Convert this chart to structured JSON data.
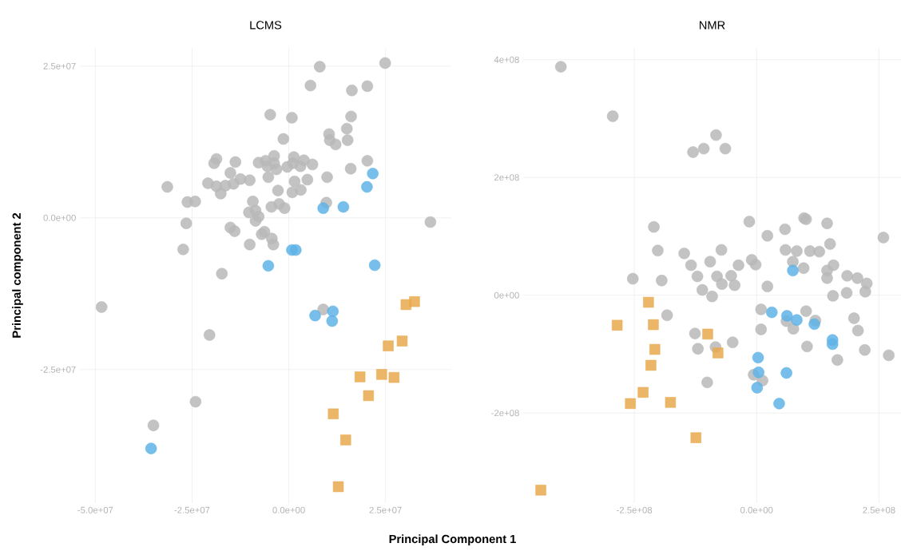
{
  "chart_data": [
    {
      "type": "scatter",
      "title": "LCMS",
      "xlabel": "Principal Component 1",
      "ylabel": "Principal component 2",
      "grid": true,
      "xlim": [
        -54000000.0,
        42000000.0
      ],
      "ylim": [
        -47000000.0,
        28000000.0
      ],
      "xticks": [
        {
          "value": -50000000.0,
          "label": "-5.0e+07"
        },
        {
          "value": -25000000.0,
          "label": "-2.5e+07"
        },
        {
          "value": 0,
          "label": "0.0e+00"
        },
        {
          "value": 25000000.0,
          "label": "2.5e+07"
        }
      ],
      "yticks": [
        {
          "value": -25000000.0,
          "label": "-2.5e+07"
        },
        {
          "value": 0,
          "label": "0.0e+00"
        },
        {
          "value": 25000000.0,
          "label": "2.5e+07"
        }
      ],
      "series": [
        {
          "color": "#b8b8b8",
          "marker": "circle",
          "x": [
            8000000.0,
            24900000.0,
            5600000.0,
            20300000.0,
            16300000.0,
            -4800000.0,
            800000.0,
            16100000.0,
            15000000.0,
            -1400000.0,
            10400000.0,
            10600000.0,
            12100000.0,
            15200000.0,
            -18700000.0,
            -19300000.0,
            -13800000.0,
            -7800000.0,
            -6000000.0,
            -3800000.0,
            -5500000.0,
            -3200000.0,
            -3800000.0,
            1300000.0,
            1100000.0,
            -400000.0,
            3000000.0,
            3900000.0,
            6100000.0,
            20300000.0,
            16000000.0,
            -15100000.0,
            -12500000.0,
            -14300000.0,
            -10100000.0,
            -5300000.0,
            -20900000.0,
            -18700000.0,
            -16400000.0,
            -17600000.0,
            -31400000.0,
            -26200000.0,
            -24200000.0,
            -2800000.0,
            900000.0,
            3100000.0,
            1500000.0,
            4800000.0,
            9900000.0,
            9700000.0,
            -9300000.0,
            -2500000.0,
            -4500000.0,
            -1100000.0,
            -10300000.0,
            -8600000.0,
            -7800000.0,
            -8600000.0,
            -26500000.0,
            36600000.0,
            -15100000.0,
            -14000000.0,
            -6300000.0,
            -7000000.0,
            -4400000.0,
            -4000000.0,
            -10100000.0,
            -27300000.0,
            -17300000.0,
            -48400000.0,
            8900000.0,
            -20500000.0,
            -24100000.0,
            -35000000.0
          ],
          "values": [
            24900000.0,
            25500000.0,
            21800000.0,
            21700000.0,
            21000000.0,
            17000000.0,
            16500000.0,
            16700000.0,
            14700000.0,
            13000000.0,
            13800000.0,
            12800000.0,
            12100000.0,
            12800000.0,
            9700000.0,
            9000000.0,
            9200000.0,
            9100000.0,
            9400000.0,
            10200000.0,
            8500000.0,
            8000000.0,
            9000000.0,
            10000000.0,
            9000000.0,
            8400000.0,
            8500000.0,
            9500000.0,
            8800000.0,
            9400000.0,
            8100000.0,
            7400000.0,
            6400000.0,
            5600000.0,
            6200000.0,
            6700000.0,
            5700000.0,
            5200000.0,
            5300000.0,
            4000000.0,
            5100000.0,
            2600000.0,
            2700000.0,
            4500000.0,
            4200000.0,
            4600000.0,
            6000000.0,
            6300000.0,
            6700000.0,
            2500000.0,
            2700000.0,
            2300000.0,
            1800000.0,
            1600000.0,
            900000.0,
            1200000.0,
            200000.0,
            -500000.0,
            -900000.0,
            -700000.0,
            -1600000.0,
            -2200000.0,
            -2300000.0,
            -2700000.0,
            -3400000.0,
            -4400000.0,
            -4400000.0,
            -5200000.0,
            -9200000.0,
            -14700000.0,
            -15100000.0,
            -19300000.0,
            -30300000.0,
            -34200000.0
          ]
        },
        {
          "color": "#5fb3e6",
          "marker": "circle",
          "x": [
            21700000.0,
            20200000.0,
            8900000.0,
            14100000.0,
            800000.0,
            1800000.0,
            -5300000.0,
            22200000.0,
            6800000.0,
            11400000.0,
            11200000.0,
            -35600000.0
          ],
          "values": [
            7300000.0,
            5100000.0,
            1600000.0,
            1800000.0,
            -5300000.0,
            -5300000.0,
            -7900000.0,
            -7800000.0,
            -16100000.0,
            -15400000.0,
            -17000000.0,
            -38000000.0
          ]
        },
        {
          "color": "#e9a94e",
          "marker": "square",
          "x": [
            32500000.0,
            30300000.0,
            29300000.0,
            25700000.0,
            18400000.0,
            24000000.0,
            27200000.0,
            20600000.0,
            11500000.0,
            14700000.0,
            12800000.0
          ],
          "values": [
            -13800000.0,
            -14300000.0,
            -20300000.0,
            -21100000.0,
            -26200000.0,
            -25800000.0,
            -26300000.0,
            -29300000.0,
            -32300000.0,
            -36600000.0,
            -44300000.0
          ]
        }
      ]
    },
    {
      "type": "scatter",
      "title": "NMR",
      "grid": true,
      "xlim": [
        -477000000.0,
        295000000.0
      ],
      "ylim": [
        -353000000.0,
        420000000.0
      ],
      "xticks": [
        {
          "value": -250000000.0,
          "label": "-2.5e+08"
        },
        {
          "value": 0,
          "label": "0.0e+00"
        },
        {
          "value": 250000000.0,
          "label": "2.5e+08"
        }
      ],
      "yticks": [
        {
          "value": -200000000.0,
          "label": "-2e+08"
        },
        {
          "value": 0,
          "label": "0e+00"
        },
        {
          "value": 200000000.0,
          "label": "2e+08"
        },
        {
          "value": 400000000.0,
          "label": "4e+08"
        }
      ],
      "series": [
        {
          "color": "#b8b8b8",
          "marker": "circle",
          "x": [
            -400000000.0,
            -294000000.0,
            -83000000.0,
            -108000000.0,
            -130000000.0,
            -64000000.0,
            -210000000.0,
            -15000000.0,
            58000000.0,
            97000000.0,
            101000000.0,
            144000000.0,
            22000000.0,
            259000000.0,
            -202000000.0,
            -148000000.0,
            -72000000.0,
            59000000.0,
            82000000.0,
            109000000.0,
            128000000.0,
            150000000.0,
            -134000000.0,
            -95000000.0,
            -37000000.0,
            -10000000.0,
            -2000000.0,
            74000000.0,
            96000000.0,
            144000000.0,
            157000000.0,
            144000000.0,
            185000000.0,
            206000000.0,
            225000000.0,
            -253000000.0,
            -194000000.0,
            -121000000.0,
            -81000000.0,
            -52000000.0,
            -71000000.0,
            -45000000.0,
            -111000000.0,
            -91000000.0,
            22000000.0,
            156000000.0,
            184000000.0,
            222000000.0,
            9000000.0,
            101000000.0,
            120000000.0,
            61000000.0,
            75000000.0,
            9000000.0,
            199000000.0,
            207000000.0,
            103000000.0,
            221000000.0,
            270000000.0,
            165000000.0,
            -183000000.0,
            -126000000.0,
            -49000000.0,
            -120000000.0,
            -84000000.0,
            -101000000.0,
            -6000000.0,
            12000000.0
          ],
          "values": [
            388000000.0,
            304000000.0,
            272000000.0,
            249000000.0,
            243000000.0,
            249000000.0,
            116000000.0,
            125000000.0,
            112000000.0,
            131000000.0,
            129000000.0,
            122000000.0,
            101000000.0,
            98000000.0,
            76000000.0,
            71000000.0,
            77000000.0,
            77000000.0,
            75000000.0,
            75000000.0,
            74000000.0,
            87000000.0,
            51000000.0,
            57000000.0,
            51000000.0,
            60000000.0,
            52000000.0,
            57000000.0,
            46000000.0,
            42000000.0,
            51000000.0,
            29000000.0,
            33000000.0,
            29000000.0,
            20000000.0,
            28000000.0,
            25000000.0,
            32000000.0,
            32000000.0,
            33000000.0,
            19000000.0,
            17000000.0,
            9000000.0,
            -2000000.0,
            15000000.0,
            -1000000.0,
            4000000.0,
            6000000.0,
            -24000000.0,
            -27000000.0,
            -43000000.0,
            -44000000.0,
            -57000000.0,
            -58000000.0,
            -39000000.0,
            -60000000.0,
            -87000000.0,
            -93000000.0,
            -102000000.0,
            -110000000.0,
            -34000000.0,
            -65000000.0,
            -80000000.0,
            -91000000.0,
            -88000000.0,
            -148000000.0,
            -135000000.0,
            -145000000.0
          ]
        },
        {
          "color": "#5fb3e6",
          "marker": "circle",
          "x": [
            74000000.0,
            31000000.0,
            62000000.0,
            82000000.0,
            118000000.0,
            155000000.0,
            155000000.0,
            3000000.0,
            4000000.0,
            61000000.0,
            1000000.0,
            46000000.0
          ],
          "values": [
            42000000.0,
            -29000000.0,
            -35000000.0,
            -42000000.0,
            -49000000.0,
            -76000000.0,
            -83000000.0,
            -106000000.0,
            -131000000.0,
            -132000000.0,
            -157000000.0,
            -184000000.0
          ]
        },
        {
          "color": "#e9a94e",
          "marker": "square",
          "x": [
            -221000000.0,
            -285000000.0,
            -211000000.0,
            -100000000.0,
            -208000000.0,
            -79000000.0,
            -216000000.0,
            -232000000.0,
            -258000000.0,
            -176000000.0,
            -124000000.0,
            -441000000.0
          ],
          "values": [
            -12000000.0,
            -51000000.0,
            -50000000.0,
            -66000000.0,
            -92000000.0,
            -98000000.0,
            -119000000.0,
            -165000000.0,
            -184000000.0,
            -182000000.0,
            -242000000.0,
            -331000000.0
          ]
        }
      ]
    }
  ]
}
